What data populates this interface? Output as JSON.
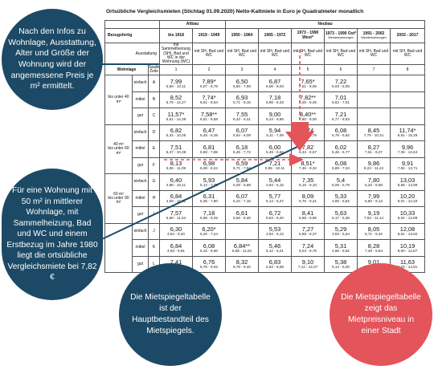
{
  "title": "Ortsübliche Vergleichsmieten (Stichtag 01.09.2020) Netto-Kaltmiete in Euro je Quadratmeter monatlich",
  "headers": {
    "altbau": "Altbau",
    "neubau": "Neubau",
    "bezugsfertig": "Bezugsfertig",
    "ausstattung": "Ausstattung",
    "wohnlage": "Wohnlage",
    "spalte_zeile": "Spalte Zeile",
    "periods": [
      "bis 1918",
      "1919 - 1949",
      "1950 - 1964",
      "1965 - 1972",
      "1973 - 1990 West",
      "1973 - 1990 Ost",
      "1991 - 2002",
      "2003 - 2017"
    ],
    "ausstattung_labels": [
      "mit Sammelheizung (SH), Bad und WC in der Wohnung (WC)",
      "mit SH, Bad und WC",
      "mit SH, Bad und WC",
      "mit SH, Bad und WC",
      "mit SH, Bad und WC",
      "mit SH, Bad und WC",
      "mit SH, Bad und WC",
      "mit SH, Bad und WC"
    ],
    "col_nums": [
      "1",
      "2",
      "3",
      "4",
      "5",
      "6",
      "7",
      "8"
    ],
    "star": "*",
    "wend": "Wendewohnungen"
  },
  "groups": [
    {
      "size": "bis unter 40 m²",
      "prefix": "",
      "rows": [
        {
          "lage": "einfach",
          "id": "A",
          "cells": [
            {
              "v": "7,99",
              "r": "5,56 - 10,11"
            },
            {
              "v": "7,89*",
              "r": "6,07 - 8,78"
            },
            {
              "v": "6,50",
              "r": "5,60 - 7,59"
            },
            {
              "v": "6,87",
              "r": "6,06 - 8,03"
            },
            {
              "v": "7,65*",
              "r": "7,51 - 8,05"
            },
            {
              "v": "7,22",
              "r": "6,03 - 8,06"
            },
            {
              "v": "",
              "r": ""
            },
            {
              "v": "",
              "r": ""
            }
          ]
        },
        {
          "lage": "mittel",
          "id": "B",
          "cells": [
            {
              "v": "8,52",
              "r": "6,79 - 12,27"
            },
            {
              "v": "7,74*",
              "r": "6,51 - 8,64"
            },
            {
              "v": "6,93",
              "r": "5,71 - 9,15"
            },
            {
              "v": "7,18",
              "r": "5,95 - 8,33"
            },
            {
              "v": "7,82**",
              "r": "5,26 - 8,25"
            },
            {
              "v": "7,01",
              "r": "6,52 - 7,51"
            },
            {
              "v": "",
              "r": ""
            },
            {
              "v": "",
              "r": ""
            }
          ]
        },
        {
          "lage": "gut",
          "id": "C",
          "cells": [
            {
              "v": "11,57*",
              "r": "6,61 - 14,39"
            },
            {
              "v": "7,58**",
              "r": "6,51 - 9,58"
            },
            {
              "v": "7,55",
              "r": "6,43 - 9,41"
            },
            {
              "v": "9,00",
              "r": "8,24 - 9,86"
            },
            {
              "v": "8,40**",
              "r": "7,60 - 9,00"
            },
            {
              "v": "7,21",
              "r": "6,77 - 8,83"
            },
            {
              "v": "",
              "r": ""
            },
            {
              "v": "",
              "r": ""
            }
          ]
        }
      ]
    },
    {
      "size": "bis unter 60 m²",
      "prefix": "40 m²",
      "rows": [
        {
          "lage": "einfach",
          "id": "D",
          "cells": [
            {
              "v": "6,82",
              "r": "5,32 - 10,05"
            },
            {
              "v": "6,47",
              "r": "5,48 - 8,28"
            },
            {
              "v": "6,07",
              "r": "5,64 - 8,09"
            },
            {
              "v": "5,94",
              "r": "5,11 - 7,09"
            },
            {
              "v": "7,74",
              "r": "6,27 - 8,75"
            },
            {
              "v": "6,08",
              "r": "5,78 - 6,62"
            },
            {
              "v": "8,45",
              "r": "7,79 - 10,31"
            },
            {
              "v": "11,74*",
              "r": "9,81 - 15,28"
            }
          ]
        },
        {
          "lage": "mittel",
          "id": "E",
          "cells": [
            {
              "v": "7,51",
              "r": "5,47 - 10,36"
            },
            {
              "v": "6,81",
              "r": "5,69 - 7,85"
            },
            {
              "v": "6,18",
              "r": "5,45 - 7,72"
            },
            {
              "v": "6,00",
              "r": "5,49 - 6,84"
            },
            {
              "v": "7,82",
              "r": "6,43 - 8,67"
            },
            {
              "v": "6,02",
              "r": "5,46 - 6,77"
            },
            {
              "v": "8,27",
              "r": "7,51 - 9,27"
            },
            {
              "v": "9,96",
              "r": "7,36 - 12,64"
            }
          ]
        },
        {
          "lage": "gut",
          "id": "F",
          "cells": [
            {
              "v": "8,13",
              "r": "6,06 - 11,09"
            },
            {
              "v": "6,98",
              "r": "6,08 - 9,24"
            },
            {
              "v": "6,59",
              "r": "5,71 - 7,94"
            },
            {
              "v": "7,21",
              "r": "5,55 - 10,11"
            },
            {
              "v": "8,51*",
              "r": "7,46 - 9,32"
            },
            {
              "v": "6,08",
              "r": "5,89 - 7,04"
            },
            {
              "v": "9,86",
              "r": "8,23 - 11,24"
            },
            {
              "v": "9,91",
              "r": "7,84 - 12,71"
            }
          ]
        }
      ]
    },
    {
      "size": "bis unter 90 m²",
      "prefix": "60 m²",
      "rows": [
        {
          "lage": "einfach",
          "id": "G",
          "cells": [
            {
              "v": "6,40",
              "r": "4,88 - 10,11"
            },
            {
              "v": "5,93",
              "r": "5,12 - 7,35"
            },
            {
              "v": "5,84",
              "r": "5,08 - 6,88"
            },
            {
              "v": "5,44",
              "r": "4,94 - 6,15"
            },
            {
              "v": "7,35",
              "r": "6,15 - 9,10"
            },
            {
              "v": "5,4",
              "r": "5,09 - 5,79"
            },
            {
              "v": "7,80",
              "r": "6,20 - 8,68"
            },
            {
              "v": "13,03",
              "r": "8,58 - 14,99"
            }
          ]
        },
        {
          "lage": "mittel",
          "id": "H",
          "cells": [
            {
              "v": "6,84",
              "r": "4,89 - 10,11"
            },
            {
              "v": "6,31",
              "r": "5,35 - 7,80"
            },
            {
              "v": "6,07",
              "r": "5,34 - 7,16"
            },
            {
              "v": "5,77",
              "r": "5,14 - 6,47"
            },
            {
              "v": "8,09",
              "r": "5,76 - 9,21"
            },
            {
              "v": "5,33",
              "r": "4,65 - 5,82"
            },
            {
              "v": "7,99",
              "r": "6,80 - 9,13"
            },
            {
              "v": "10,20",
              "r": "9,01 - 12,33"
            }
          ]
        },
        {
          "lage": "gut",
          "id": "I",
          "cells": [
            {
              "v": "7,57",
              "r": "5,68 - 11,04"
            },
            {
              "v": "7,18",
              "r": "5,98 - 9,25"
            },
            {
              "v": "6,61",
              "r": "5,56 - 8,46"
            },
            {
              "v": "6,72",
              "r": "5,84 - 8,40"
            },
            {
              "v": "8,41",
              "r": "6,68 - 9,95"
            },
            {
              "v": "5,63",
              "r": "5,17 - 6,36"
            },
            {
              "v": "9,19",
              "r": "7,53 - 11,14"
            },
            {
              "v": "10,33",
              "r": "8,04 - 12,89"
            }
          ]
        }
      ]
    },
    {
      "size": "",
      "prefix": "",
      "rows": [
        {
          "lage": "einfach",
          "id": "J",
          "cells": [
            {
              "v": "6,30",
              "r": "4,84 - 9,20"
            },
            {
              "v": "6,20*",
              "r": "5,20 - 7,24"
            },
            {
              "v": "",
              "r": ""
            },
            {
              "v": "5,53",
              "r": "4,94 - 6,12"
            },
            {
              "v": "7,27",
              "r": "5,89 - 8,37"
            },
            {
              "v": "5,29",
              "r": "4,83 - 5,54"
            },
            {
              "v": "8,05",
              "r": "6,71 - 9,42"
            },
            {
              "v": "12,08",
              "r": "8,61 - 13,92"
            }
          ]
        },
        {
          "lage": "mittel",
          "id": "K",
          "cells": [
            {
              "v": "6,84",
              "r": "4,93 - 9,91"
            },
            {
              "v": "6,08",
              "r": "5,16 - 8,60"
            },
            {
              "v": "6,84**",
              "r": "5,68 - 11,54"
            },
            {
              "v": "5,46",
              "r": "5,12 - 6,21"
            },
            {
              "v": "7,24",
              "r": "6,04 - 8,76"
            },
            {
              "v": "5,31",
              "r": "4,66 - 5,62"
            },
            {
              "v": "8,28",
              "r": "7,29 - 9,64"
            },
            {
              "v": "10,19",
              "r": "8,00 - 12,87"
            }
          ]
        },
        {
          "lage": "gut",
          "id": "L",
          "cells": [
            {
              "v": "7,41",
              "r": "5,68 - 11,19"
            },
            {
              "v": "6,76",
              "r": "5,75 - 9,03"
            },
            {
              "v": "8,32",
              "r": "6,76 - 9,40"
            },
            {
              "v": "6,83",
              "r": "5,62 - 8,58"
            },
            {
              "v": "9,10",
              "r": "7,14 - 12,07"
            },
            {
              "v": "5,38",
              "r": "5,14 - 6,00"
            },
            {
              "v": "9,01",
              "r": "7,44 - 10,23"
            },
            {
              "v": "11,63",
              "r": "9,63 - 14,91"
            }
          ]
        }
      ]
    }
  ],
  "callouts": {
    "c1": "Nach den Infos zu Wohnlage, Ausstattung, Alter und Größe der Wohnung wird der angemessene Preis je m² ermittelt.",
    "c2": "Für eine Wohnung mit 50 m² in mittlerer Wohnlage, mit Sammelheizung, Bad und WC und einem Erstbezug im Jahre 1980 liegt die ortsübliche Vergleichsmiete bei 7,82 €",
    "c3": "Die Mietspiegeltabelle ist der Hauptbestandteil des Mietspiegels.",
    "c4": "Die Mietspiegeltabelle zeigt das Mietpreisniveau in einer Stadt"
  },
  "colors": {
    "teal": "#1c4a66",
    "red": "#e3545b",
    "table_line": "#555555"
  }
}
